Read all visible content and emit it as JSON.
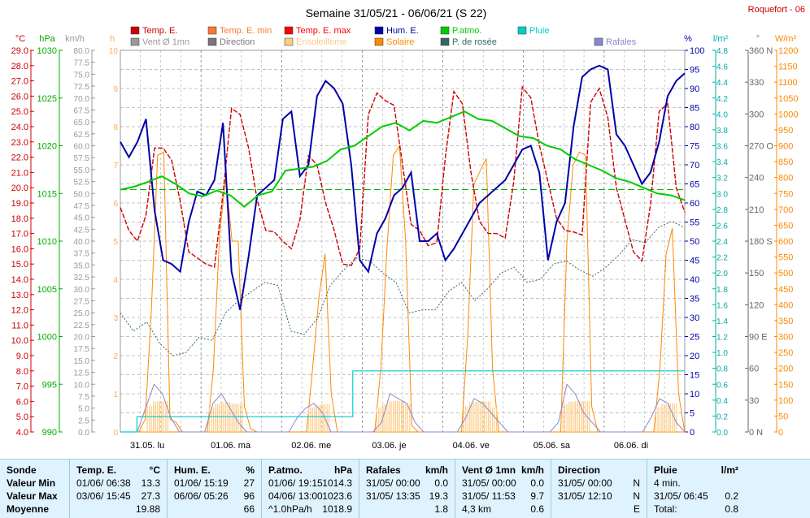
{
  "title": "Semaine 31/05/21 - 06/06/21 (S 22)",
  "station": "Roquefort - 06",
  "legend": [
    {
      "label": "Temp. E.",
      "color": "#cc0000"
    },
    {
      "label": "Temp. E. min",
      "color": "#ff7733"
    },
    {
      "label": "Temp. E. max",
      "color": "#ff0000"
    },
    {
      "label": "Hum. E.",
      "color": "#0000aa"
    },
    {
      "label": "P.atmo.",
      "color": "#00cc00"
    },
    {
      "label": "Pluie",
      "color": "#00cccc"
    },
    {
      "label": "Vent Ø 1mn",
      "color": "#999999"
    },
    {
      "label": "Direction",
      "color": "#777777"
    },
    {
      "label": "Ensoleilleme",
      "color": "#ffcc88"
    },
    {
      "label": "Solaire",
      "color": "#ff8800"
    },
    {
      "label": "P. de rosée",
      "color": "#336666"
    },
    {
      "label": "Rafales",
      "color": "#8888cc"
    }
  ],
  "axes": {
    "temp_unit": "°C",
    "hpa_unit": "hPa",
    "kmh_unit": "km/h",
    "h_unit": "h",
    "pct_unit": "%",
    "rain_unit": "l/m²",
    "dir_unit": "°",
    "wm2_unit": "W/m²",
    "temp_ticks": [
      "4.0",
      "5.0",
      "6.0",
      "7.0",
      "8.0",
      "9.0",
      "10.0",
      "11.0",
      "12.0",
      "13.0",
      "14.0",
      "15.0",
      "16.0",
      "17.0",
      "18.0",
      "19.0",
      "20.0",
      "21.0",
      "22.0",
      "23.0",
      "24.0",
      "25.0",
      "26.0",
      "27.0",
      "28.0",
      "29.0"
    ],
    "hpa_ticks": [
      "990",
      "995",
      "1000",
      "1005",
      "1010",
      "1015",
      "1020",
      "1025",
      "1030"
    ],
    "kmh_ticks": [
      "0.0",
      "2.5",
      "5.0",
      "7.5",
      "10.0",
      "12.5",
      "15.0",
      "17.5",
      "20.0",
      "22.5",
      "25.0",
      "27.5",
      "30.0",
      "32.5",
      "35.0",
      "37.5",
      "40.0",
      "42.5",
      "45.0",
      "47.5",
      "50.0",
      "52.5",
      "55.0",
      "57.5",
      "60.0",
      "62.5",
      "65.0",
      "67.5",
      "70.0",
      "72.5",
      "75.0",
      "77.5",
      "80.0"
    ],
    "h_ticks": [
      "0",
      "1",
      "2",
      "3",
      "4",
      "5",
      "6",
      "7",
      "8",
      "9",
      "10"
    ],
    "pct_ticks": [
      "0",
      "5",
      "10",
      "15",
      "20",
      "25",
      "30",
      "35",
      "40",
      "45",
      "50",
      "55",
      "60",
      "65",
      "70",
      "75",
      "80",
      "85",
      "90",
      "95",
      "100"
    ],
    "rain_ticks": [
      "0.0",
      "0.2",
      "0.4",
      "0.6",
      "0.8",
      "1.0",
      "1.2",
      "1.4",
      "1.6",
      "1.8",
      "2.0",
      "2.2",
      "2.4",
      "2.6",
      "2.8",
      "3.0",
      "3.2",
      "3.4",
      "3.6",
      "3.8",
      "4.0",
      "4.2",
      "4.4",
      "4.6",
      "4.8"
    ],
    "dir_ticks": [
      "0 N",
      "30",
      "60",
      "90 E",
      "120",
      "150",
      "180 S",
      "210",
      "240",
      "270 O",
      "300",
      "330",
      "360 N"
    ],
    "wm2_ticks": [
      "0",
      "50",
      "100",
      "150",
      "200",
      "250",
      "300",
      "350",
      "400",
      "450",
      "500",
      "550",
      "600",
      "650",
      "700",
      "750",
      "800",
      "850",
      "900",
      "950",
      "1000",
      "1050",
      "1100",
      "1150",
      "1200"
    ],
    "day_labels": [
      "31.05. lu",
      "01.06. ma",
      "02.06. me",
      "03.06. je",
      "04.06. ve",
      "05.06. sa",
      "06.06. di"
    ]
  },
  "chart_data": {
    "type": "line",
    "x_days": 7,
    "temp_range": [
      4,
      29
    ],
    "hum_range": [
      0,
      100
    ],
    "press_range": [
      990,
      1030
    ],
    "rain_range": [
      0,
      5
    ],
    "solar_range": [
      0,
      1200
    ],
    "wind_range": [
      0,
      80
    ],
    "mean_temp_line": 19.88,
    "series": [
      {
        "name": "Temp. E.",
        "color": "#cc0000",
        "range": "temp",
        "values": [
          18.7,
          17.2,
          16.5,
          18.2,
          22.6,
          22.6,
          21.8,
          19.1,
          15.8,
          15.4,
          15.0,
          14.8,
          19.6,
          25.2,
          24.8,
          22.6,
          19.2,
          17.2,
          17.1,
          16.5,
          16.0,
          17.9,
          22.1,
          21.5,
          19.0,
          17.2,
          15.0,
          14.9,
          16.0,
          24.8,
          26.2,
          25.7,
          25.4,
          21.5,
          17.6,
          17.2,
          16.2,
          16.4,
          22.0,
          26.3,
          25.5,
          21.0,
          17.8,
          17.0,
          17.0,
          16.7,
          20.4,
          26.6,
          25.9,
          22.8,
          20.4,
          18.0,
          17.2,
          17.1,
          16.9,
          25.6,
          26.5,
          24.6,
          20.0,
          17.9,
          15.8,
          15.2,
          18.9,
          25.0,
          25.5,
          20.0,
          18.4
        ]
      },
      {
        "name": "Hum. E.",
        "color": "#0000aa",
        "range": "hum",
        "values": [
          76,
          72,
          76,
          82,
          58,
          45,
          44,
          42,
          55,
          63,
          62,
          66,
          81,
          42,
          32,
          46,
          62,
          64,
          66,
          82,
          84,
          67,
          70,
          88,
          92,
          90,
          86,
          70,
          45,
          42,
          52,
          56,
          62,
          64,
          68,
          50,
          50,
          52,
          45,
          48,
          52,
          56,
          60,
          62,
          64,
          66,
          70,
          74,
          75,
          68,
          45,
          55,
          60,
          80,
          93,
          95,
          96,
          95,
          78,
          75,
          70,
          65,
          68,
          76,
          88,
          92,
          94
        ]
      },
      {
        "name": "P.atmo.",
        "color": "#00cc00",
        "range": "press",
        "values": [
          1015.4,
          1015.7,
          1016.2,
          1016.8,
          1016.0,
          1015.0,
          1014.7,
          1015.3,
          1014.8,
          1013.6,
          1014.8,
          1015.2,
          1017.4,
          1017.6,
          1017.8,
          1018.4,
          1019.6,
          1020.0,
          1021.0,
          1022.0,
          1022.4,
          1021.6,
          1022.6,
          1022.4,
          1023.0,
          1023.6,
          1022.8,
          1022.6,
          1021.8,
          1021.0,
          1020.8,
          1020.0,
          1019.6,
          1018.6,
          1018.0,
          1017.4,
          1016.6,
          1016.2,
          1015.6,
          1015.0,
          1014.8,
          1014.3
        ]
      },
      {
        "name": "P. de rosée",
        "color": "#336666",
        "range": "temp",
        "values": [
          11.8,
          10.6,
          11.2,
          9.8,
          9.0,
          9.2,
          10.2,
          10.0,
          11.8,
          12.6,
          13.2,
          13.8,
          13.6,
          10.6,
          10.4,
          11.4,
          13.6,
          14.6,
          15.4,
          15.2,
          14.4,
          13.8,
          11.8,
          12.0,
          12.0,
          13.2,
          13.8,
          12.6,
          13.4,
          14.4,
          14.8,
          13.8,
          14.0,
          15.0,
          15.2,
          14.6,
          14.2,
          14.8,
          15.6,
          16.6,
          16.4,
          17.4,
          17.8,
          17.4
        ]
      }
    ],
    "rain_series": {
      "name": "Pluie",
      "color": "#00cccc",
      "values": [
        0.0,
        0.2,
        0.2,
        0.2,
        0.2,
        0.2,
        0.2,
        0.2,
        0.2,
        0.2,
        0.2,
        0.2,
        0.2,
        0.2,
        0.8,
        0.8,
        0.8,
        0.8,
        0.8,
        0.8,
        0.8,
        0.8,
        0.8,
        0.8,
        0.8,
        0.8,
        0.8,
        0.8,
        0.8,
        0.8,
        0.8,
        0.8,
        0.8,
        0.8,
        0.8
      ]
    },
    "solar_series": {
      "name": "Solaire",
      "color": "#ff8800",
      "values": [
        0,
        0,
        0,
        0,
        40,
        380,
        870,
        880,
        40,
        30,
        0,
        0,
        0,
        0,
        0,
        200,
        620,
        800,
        600,
        600,
        80,
        10,
        0,
        0,
        0,
        0,
        0,
        0,
        0,
        0,
        0,
        200,
        420,
        560,
        120,
        0,
        0,
        0,
        0,
        0,
        0,
        0,
        200,
        580,
        870,
        900,
        600,
        20,
        0,
        0,
        0,
        0,
        0,
        0,
        0,
        0,
        300,
        780,
        820,
        860,
        200,
        0,
        0,
        0,
        0,
        0,
        0,
        0,
        0,
        0,
        0,
        0,
        600,
        840,
        880,
        870,
        80,
        0,
        0,
        0,
        0,
        0,
        0,
        0,
        0,
        0,
        0,
        200,
        560,
        640,
        120,
        0
      ]
    },
    "gust_series": {
      "name": "Rafales",
      "color": "#8888cc",
      "range": "wind",
      "values": [
        0,
        0,
        0,
        5,
        10,
        8,
        3,
        0,
        0,
        0,
        0,
        6,
        8,
        5,
        2,
        0,
        0,
        0,
        0,
        0,
        0,
        3,
        5,
        6,
        4,
        0,
        0,
        0,
        0,
        0,
        0,
        2,
        8,
        7,
        6,
        2,
        0,
        0,
        0,
        0,
        0,
        3,
        7,
        6,
        4,
        2,
        0,
        0,
        0,
        0,
        0,
        0,
        2,
        10,
        8,
        4,
        2,
        0,
        0,
        0,
        0,
        0,
        0,
        3,
        7,
        6,
        2,
        0
      ]
    }
  },
  "summary": {
    "sonde": {
      "header": "Sonde",
      "rows": [
        "Valeur Min",
        "Valeur Max",
        "Moyenne"
      ]
    },
    "temp": {
      "header": "Temp. E.",
      "unit": "°C",
      "rows": [
        [
          "01/06/ 06:38",
          "13.3"
        ],
        [
          "03/06/ 15:45",
          "27.3"
        ],
        [
          "",
          "19.88"
        ]
      ]
    },
    "hum": {
      "header": "Hum. E.",
      "unit": "%",
      "rows": [
        [
          "01/06/ 15:19",
          "27"
        ],
        [
          "06/06/ 05:26",
          "96"
        ],
        [
          "",
          "66"
        ]
      ]
    },
    "press": {
      "header": "P.atmo.",
      "unit": "hPa",
      "rows": [
        [
          "01/06/ 19:15",
          "1014.3"
        ],
        [
          "04/06/ 13:00",
          "1023.6"
        ],
        [
          "^1.0hPa/h",
          "1018.9"
        ]
      ]
    },
    "gust": {
      "header": "Rafales",
      "unit": "km/h",
      "rows": [
        [
          "31/05/ 00:00",
          "0.0"
        ],
        [
          "31/05/ 13:35",
          "19.3"
        ],
        [
          "",
          "1.8"
        ]
      ]
    },
    "wind": {
      "header": "Vent Ø 1mn",
      "unit": "km/h",
      "rows": [
        [
          "31/05/ 00:00",
          "0.0"
        ],
        [
          "31/05/ 11:53",
          "9.7"
        ],
        [
          "4,3 km",
          "0.6"
        ]
      ]
    },
    "dir": {
      "header": "Direction",
      "unit": "",
      "rows": [
        [
          "31/05/ 00:00",
          "N"
        ],
        [
          "31/05/ 12:10",
          "N"
        ],
        [
          "",
          "E"
        ]
      ]
    },
    "rain": {
      "header": "Pluie",
      "unit": "l/m²",
      "rows": [
        [
          "4 min.",
          ""
        ],
        [
          "31/05/ 06:45",
          "0.2"
        ],
        [
          "Total:",
          "0.8"
        ]
      ]
    }
  }
}
